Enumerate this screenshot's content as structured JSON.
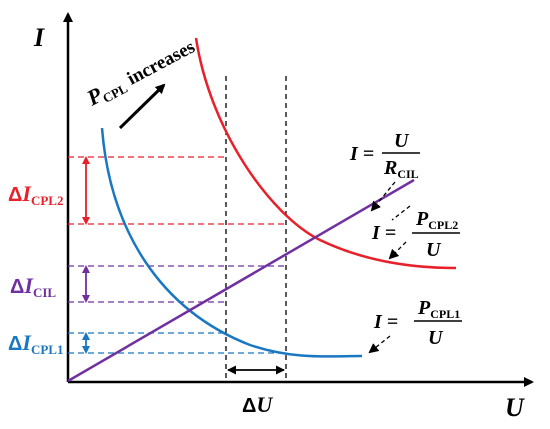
{
  "axes": {
    "y_label": "I",
    "x_label": "U"
  },
  "annotation": {
    "pcpl_symbol": "P",
    "pcpl_sub": "CPL",
    "pcpl_text": "increases"
  },
  "equations": {
    "cil": {
      "lhs": "I =",
      "num": "U",
      "den_main": "R",
      "den_sub": "CIL"
    },
    "cpl2": {
      "lhs": "I =",
      "num_main": "P",
      "num_sub": "CPL2",
      "den": "U"
    },
    "cpl1": {
      "lhs": "I =",
      "num_main": "P",
      "num_sub": "CPL1",
      "den": "U"
    }
  },
  "deltas": {
    "cpl2": {
      "delta": "Δ",
      "main": "I",
      "sub": "CPL2"
    },
    "cil": {
      "delta": "Δ",
      "main": "I",
      "sub": "CIL"
    },
    "cpl1": {
      "delta": "Δ",
      "main": "I",
      "sub": "CPL1"
    },
    "du": {
      "delta": "Δ",
      "main": "U"
    }
  },
  "colors": {
    "red": "#e8202a",
    "blue": "#1a78c2",
    "purple": "#7030a0",
    "black": "#000000"
  }
}
